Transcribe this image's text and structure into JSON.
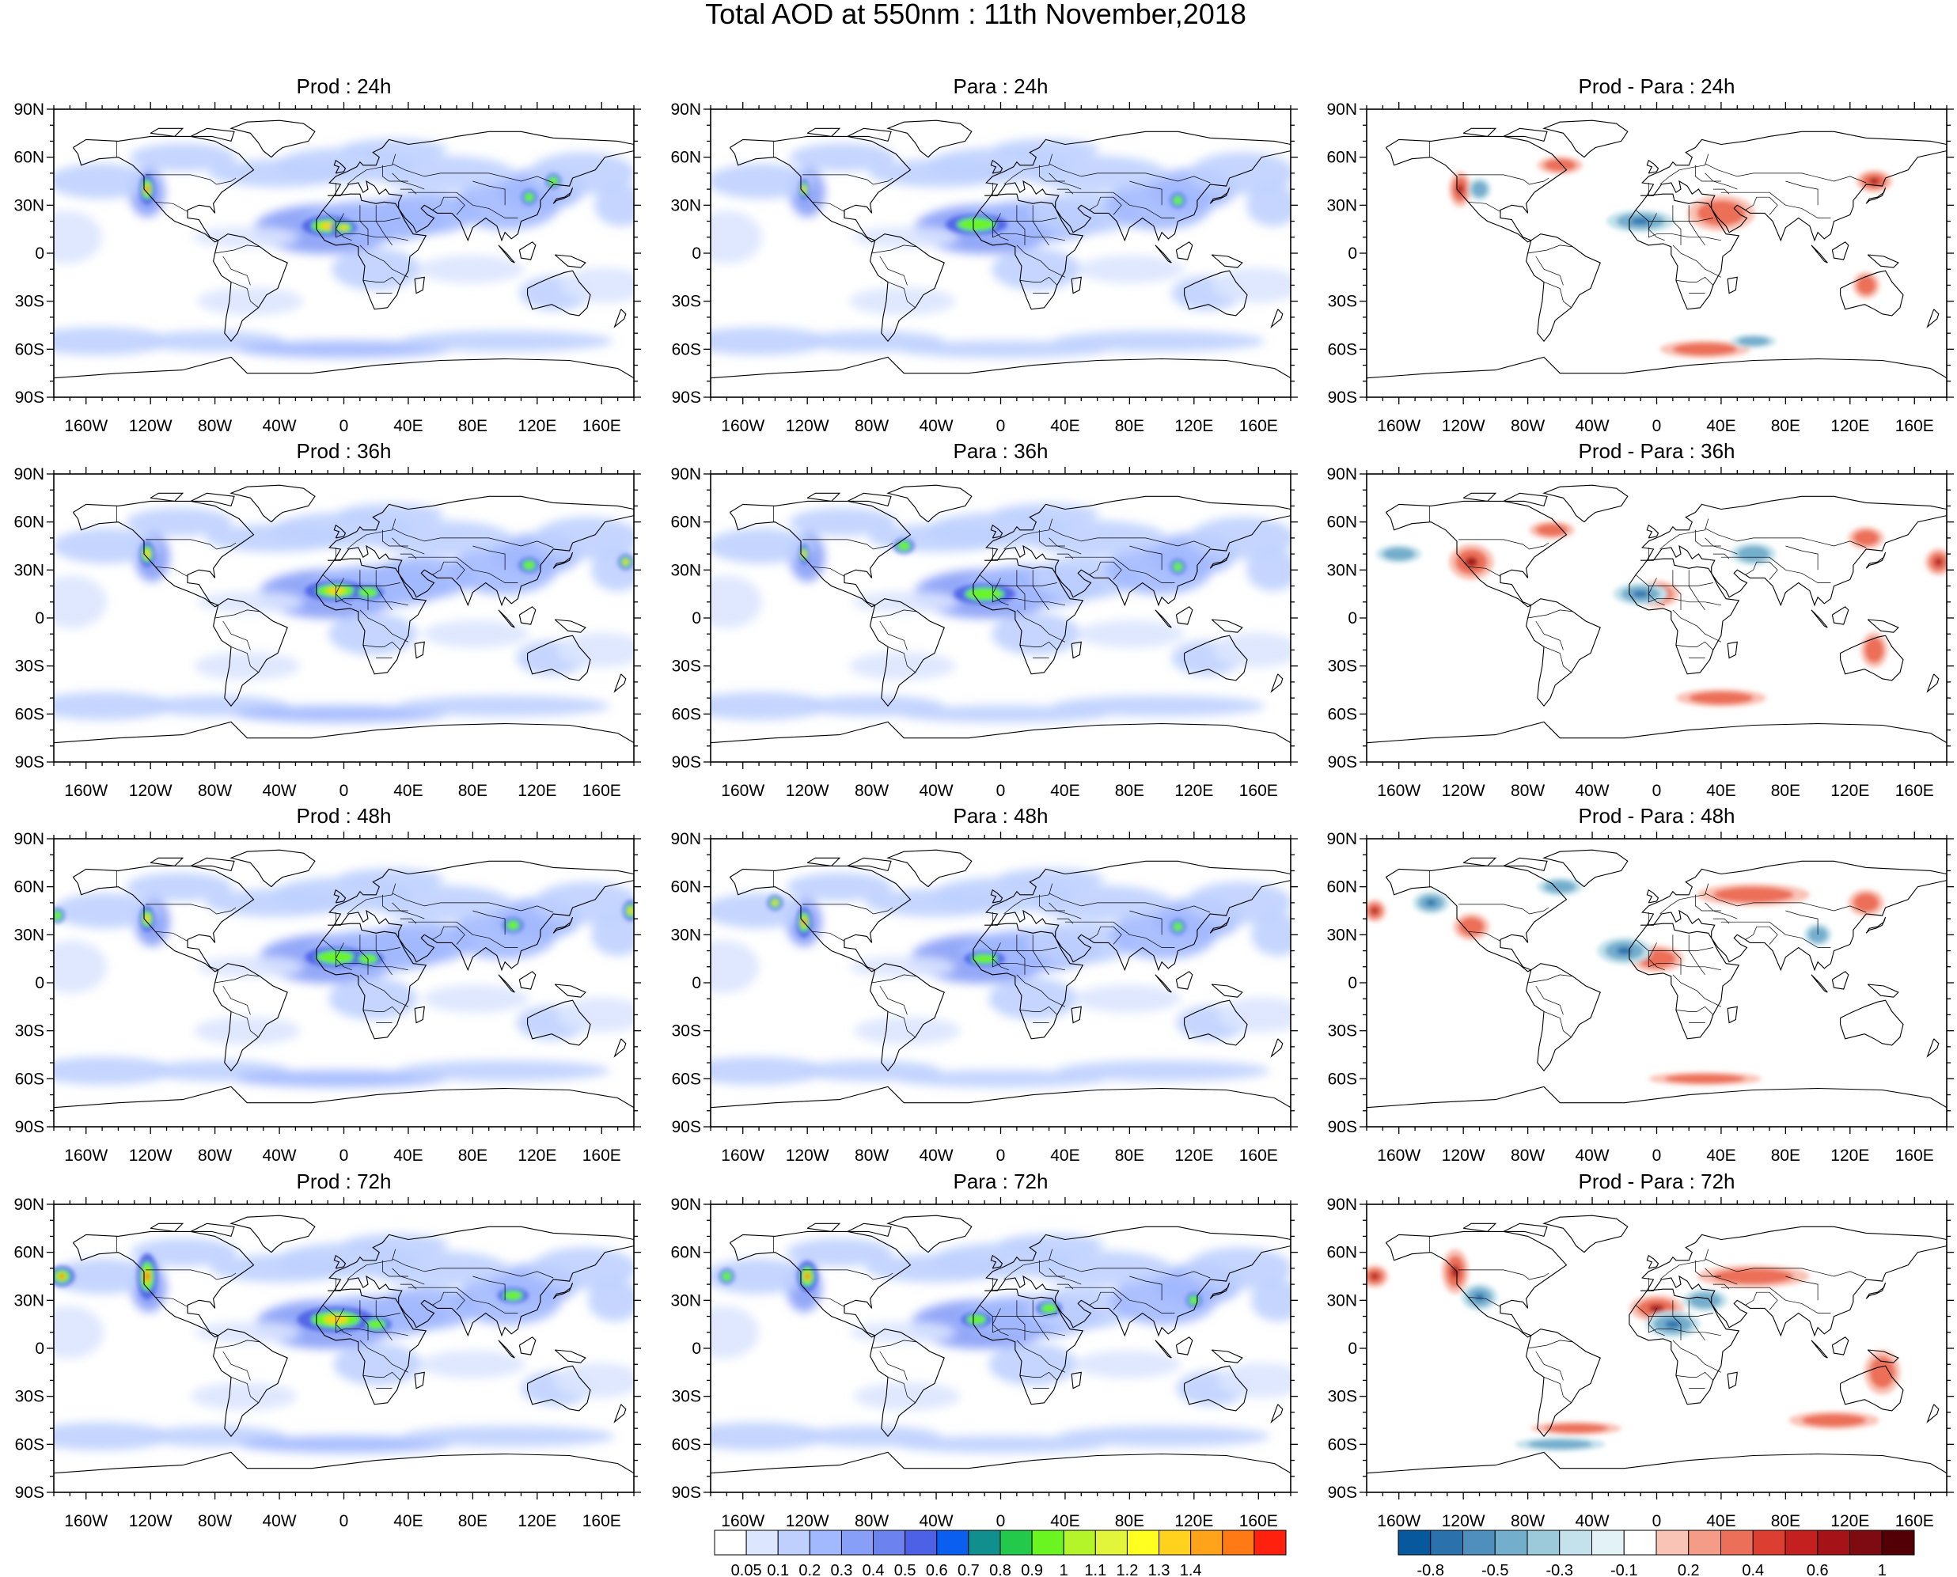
{
  "figure": {
    "title": "Total AOD at 550nm : 11th November,2018"
  },
  "panels": [
    {
      "title": "Prod : 24h",
      "kind": "aod"
    },
    {
      "title": "Para : 24h",
      "kind": "aod"
    },
    {
      "title": "Prod - Para : 24h",
      "kind": "diff"
    },
    {
      "title": "Prod : 36h",
      "kind": "aod"
    },
    {
      "title": "Para : 36h",
      "kind": "aod"
    },
    {
      "title": "Prod - Para : 36h",
      "kind": "diff"
    },
    {
      "title": "Prod : 48h",
      "kind": "aod"
    },
    {
      "title": "Para : 48h",
      "kind": "aod"
    },
    {
      "title": "Prod - Para : 48h",
      "kind": "diff"
    },
    {
      "title": "Prod : 72h",
      "kind": "aod"
    },
    {
      "title": "Para : 72h",
      "kind": "aod"
    },
    {
      "title": "Prod - Para : 72h",
      "kind": "diff"
    }
  ],
  "axes": {
    "lat_ticks": [
      "90N",
      "60N",
      "30N",
      "0",
      "30S",
      "60S",
      "90S"
    ],
    "lon_ticks": [
      "160W",
      "120W",
      "80W",
      "40W",
      "0",
      "40E",
      "80E",
      "120E",
      "160E"
    ]
  },
  "colorbars": {
    "aod": {
      "labels": [
        "0.05",
        "0.1",
        "0.2",
        "0.3",
        "0.4",
        "0.5",
        "0.6",
        "0.7",
        "0.8",
        "0.9",
        "1",
        "1.1",
        "1.2",
        "1.3",
        "1.4"
      ],
      "colors": [
        "#ffffff",
        "#dce6ff",
        "#bfd0ff",
        "#a3b9ff",
        "#879ff7",
        "#6c82ee",
        "#4c61e6",
        "#0a5ef0",
        "#118e8e",
        "#22c94a",
        "#6af520",
        "#b4f52a",
        "#e2f53a",
        "#ffff20",
        "#ffd21e",
        "#ffa41a",
        "#ff7a14",
        "#ff200e"
      ]
    },
    "diff": {
      "labels": [
        "-0.8",
        "-0.5",
        "-0.3",
        "-0.1",
        "0.2",
        "0.4",
        "0.6",
        "1"
      ],
      "colors": [
        "#08589e",
        "#2b72ad",
        "#4f8fbe",
        "#74aecd",
        "#9ccadb",
        "#c3e2eb",
        "#e3f2f6",
        "#ffffff",
        "#f9c3b5",
        "#f49c87",
        "#ec7059",
        "#dc3f32",
        "#c4201f",
        "#a51218",
        "#7e0a12",
        "#520006"
      ]
    }
  }
}
